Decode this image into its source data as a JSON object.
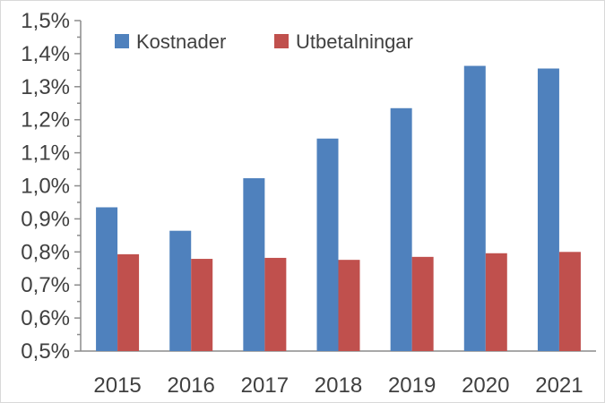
{
  "chart_data": {
    "type": "bar",
    "title": "",
    "xlabel": "",
    "ylabel": "",
    "categories": [
      "2015",
      "2016",
      "2017",
      "2018",
      "2019",
      "2020",
      "2021"
    ],
    "series": [
      {
        "name": "Kostnader",
        "color": "#4F81BD",
        "values": [
          0.935,
          0.864,
          1.023,
          1.143,
          1.235,
          1.363,
          1.355
        ]
      },
      {
        "name": "Utbetalningar",
        "color": "#C0504D",
        "values": [
          0.793,
          0.779,
          0.782,
          0.776,
          0.785,
          0.796,
          0.8
        ]
      }
    ],
    "ylim": [
      0.5,
      1.5
    ],
    "y_ticks": [
      {
        "value": 0.5,
        "label": "0,5%"
      },
      {
        "value": 0.6,
        "label": "0,6%"
      },
      {
        "value": 0.7,
        "label": "0,7%"
      },
      {
        "value": 0.8,
        "label": "0,8%"
      },
      {
        "value": 0.9,
        "label": "0,9%"
      },
      {
        "value": 1.0,
        "label": "1,0%"
      },
      {
        "value": 1.1,
        "label": "1,1%"
      },
      {
        "value": 1.2,
        "label": "1,2%"
      },
      {
        "value": 1.3,
        "label": "1,3%"
      },
      {
        "value": 1.4,
        "label": "1,4%"
      },
      {
        "value": 1.5,
        "label": "1,5%"
      }
    ],
    "grid": false,
    "legend_position": "top-left"
  }
}
